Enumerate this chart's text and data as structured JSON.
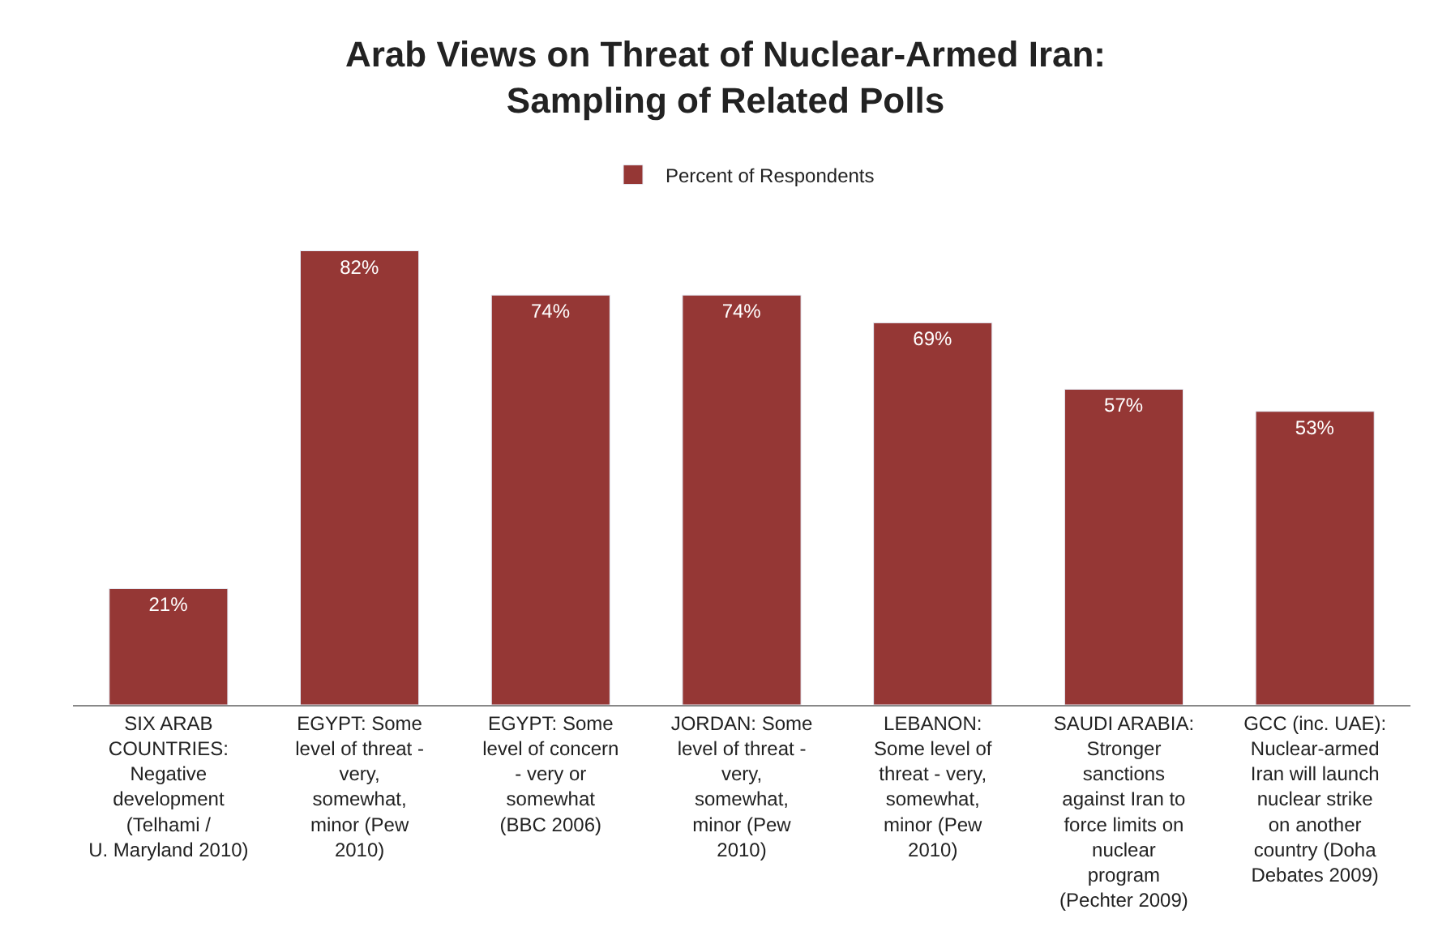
{
  "chart_data": {
    "type": "bar",
    "title": "Arab Views on Threat of Nuclear-Armed Iran:\nSampling of Related Polls",
    "categories": [
      "SIX ARAB\nCOUNTRIES:\nNegative\ndevelopment\n(Telhami /\nU. Maryland 2010)",
      "EGYPT: Some\nlevel of threat -\nvery,\nsomewhat,\nminor (Pew\n2010)",
      "EGYPT: Some\nlevel of concern\n- very or\nsomewhat\n(BBC 2006)",
      "JORDAN: Some\nlevel of threat -\nvery,\nsomewhat,\nminor (Pew\n2010)",
      "LEBANON:\nSome level of\nthreat - very,\nsomewhat,\nminor (Pew\n2010)",
      "SAUDI ARABIA:\nStronger\nsanctions\nagainst Iran to\nforce limits on\nnuclear\nprogram\n(Pechter 2009)",
      "GCC (inc. UAE):\nNuclear-armed\nIran will launch\nnuclear strike\non another\ncountry (Doha\nDebates 2009)"
    ],
    "series": [
      {
        "name": "Percent of Respondents",
        "color": "#953735",
        "values": [
          21,
          82,
          74,
          74,
          69,
          57,
          53
        ],
        "value_labels": [
          "21%",
          "82%",
          "74%",
          "74%",
          "69%",
          "57%",
          "53%"
        ]
      }
    ],
    "tick_labels": "x",
    "legend": "top"
  }
}
